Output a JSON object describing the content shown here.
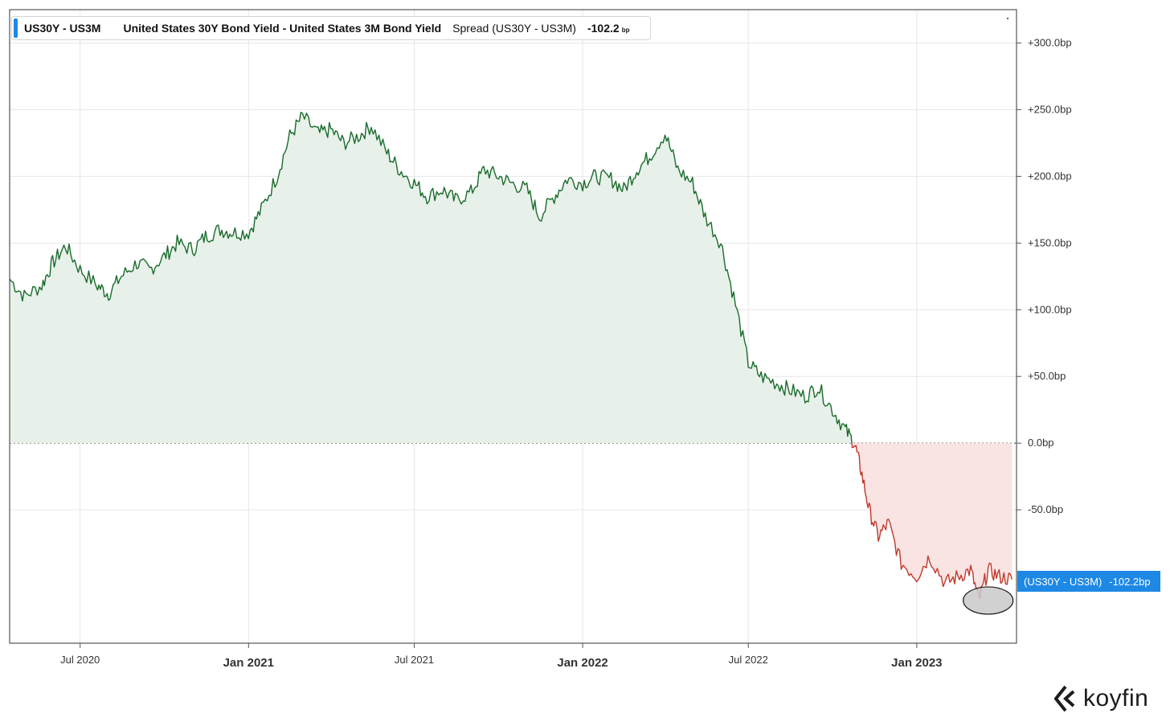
{
  "legend": {
    "ticker": "US30Y - US3M",
    "name": "United States 30Y Bond Yield - United States 3M Bond Yield",
    "series": "Spread (US30Y - US3M)",
    "value": "-102.2",
    "unit": "bp"
  },
  "price_tag": {
    "name": "(US30Y - US3M)",
    "value": "-102.2bp"
  },
  "logo": {
    "text": "koyfin",
    "icon": "koyfin-logo-icon"
  },
  "colors": {
    "positive_line": "#1a6b2c",
    "positive_fill": "#e7f1ea",
    "negative_line": "#c0392b",
    "negative_fill": "#f9e3e3",
    "accent": "#1e88e5",
    "grid": "#e6e6e6",
    "highlight_marker": "#c9c9c9"
  },
  "chart_data": {
    "type": "area",
    "title": "",
    "xlabel": "",
    "ylabel": "",
    "ylim": [
      -150,
      325
    ],
    "xlim": [
      "2020-04-15",
      "2023-04-20"
    ],
    "grid": true,
    "baseline": 0,
    "y_ticks": [
      300,
      250,
      200,
      150,
      100,
      50,
      0,
      -50
    ],
    "y_tick_labels": [
      "+300.0bp",
      "+250.0bp",
      "+200.0bp",
      "+150.0bp",
      "+100.0bp",
      "+50.0bp",
      "0.0bp",
      "-50.0bp"
    ],
    "x_ticks": [
      "2020-07-01",
      "2021-01-01",
      "2021-07-01",
      "2022-01-01",
      "2022-07-01",
      "2023-01-01"
    ],
    "x_tick_labels": [
      "Jul 2020",
      "Jan 2021",
      "Jul 2021",
      "Jan 2022",
      "Jul 2022",
      "Jan 2023"
    ],
    "x_tick_major": [
      false,
      true,
      false,
      true,
      false,
      true
    ],
    "series": [
      {
        "name": "Spread (US30Y - US3M)",
        "x": [
          "2020-04-15",
          "2020-05-01",
          "2020-05-20",
          "2020-06-01",
          "2020-06-15",
          "2020-07-01",
          "2020-07-20",
          "2020-08-01",
          "2020-08-15",
          "2020-09-01",
          "2020-09-15",
          "2020-10-01",
          "2020-10-15",
          "2020-11-01",
          "2020-11-15",
          "2020-12-01",
          "2020-12-15",
          "2021-01-01",
          "2021-01-15",
          "2021-02-01",
          "2021-02-15",
          "2021-03-01",
          "2021-03-18",
          "2021-04-01",
          "2021-04-15",
          "2021-05-01",
          "2021-05-15",
          "2021-06-01",
          "2021-06-15",
          "2021-07-01",
          "2021-07-15",
          "2021-08-01",
          "2021-08-15",
          "2021-09-01",
          "2021-09-15",
          "2021-10-01",
          "2021-10-15",
          "2021-11-01",
          "2021-11-15",
          "2021-12-01",
          "2021-12-15",
          "2022-01-01",
          "2022-01-15",
          "2022-02-01",
          "2022-02-15",
          "2022-03-01",
          "2022-03-15",
          "2022-04-01",
          "2022-04-15",
          "2022-05-01",
          "2022-05-15",
          "2022-06-01",
          "2022-06-15",
          "2022-07-01",
          "2022-07-15",
          "2022-08-01",
          "2022-08-15",
          "2022-09-01",
          "2022-09-15",
          "2022-10-01",
          "2022-10-15",
          "2022-10-25",
          "2022-11-01",
          "2022-11-10",
          "2022-11-20",
          "2022-12-01",
          "2022-12-15",
          "2023-01-01",
          "2023-01-15",
          "2023-02-01",
          "2023-02-15",
          "2023-03-01",
          "2023-03-10",
          "2023-03-20",
          "2023-04-01",
          "2023-04-15"
        ],
        "values": [
          123,
          110,
          118,
          135,
          148,
          130,
          118,
          112,
          125,
          135,
          130,
          140,
          150,
          145,
          155,
          160,
          158,
          158,
          175,
          200,
          230,
          245,
          232,
          235,
          225,
          230,
          238,
          218,
          205,
          195,
          185,
          190,
          182,
          188,
          205,
          200,
          195,
          190,
          170,
          185,
          198,
          195,
          200,
          198,
          190,
          205,
          215,
          232,
          205,
          195,
          170,
          150,
          110,
          60,
          50,
          45,
          40,
          35,
          42,
          25,
          10,
          0,
          -20,
          -50,
          -70,
          -60,
          -90,
          -100,
          -85,
          -105,
          -100,
          -95,
          -118,
          -95,
          -100,
          -102.2
        ]
      }
    ],
    "annotations": [
      {
        "type": "ellipse-highlight",
        "x": "2023-03-20",
        "y": -118
      }
    ]
  }
}
